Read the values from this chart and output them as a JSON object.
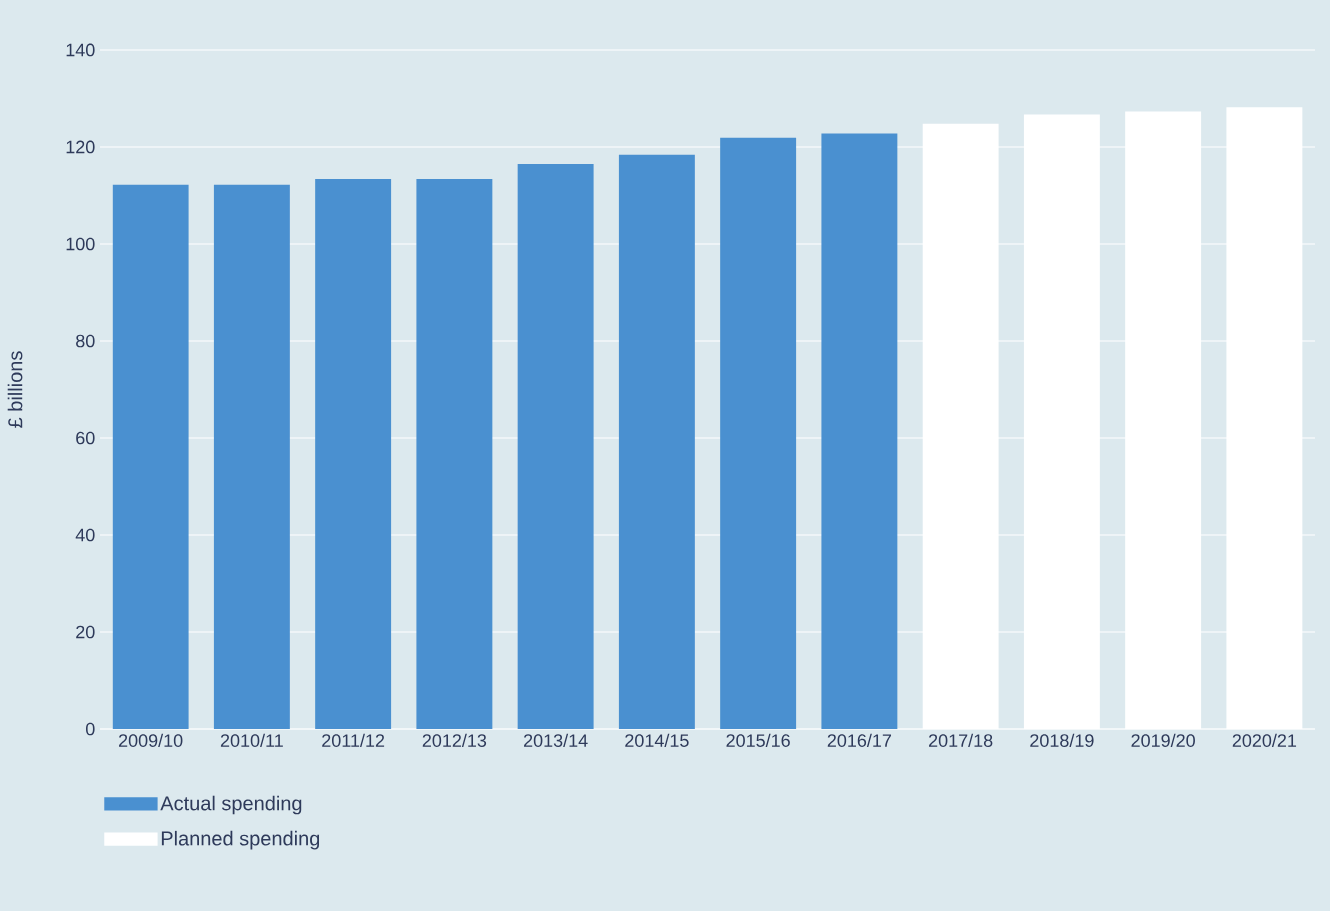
{
  "chart_data": {
    "type": "bar",
    "ylabel": "£ billions",
    "categories": [
      "2009/10",
      "2010/11",
      "2011/12",
      "2012/13",
      "2013/14",
      "2014/15",
      "2015/16",
      "2016/17",
      "2017/18",
      "2018/19",
      "2019/20",
      "2020/21"
    ],
    "series": [
      {
        "name": "Actual spending",
        "color": "#4a90d0",
        "values": [
          112.2,
          112.2,
          113.4,
          113.4,
          116.5,
          118.4,
          121.9,
          122.8,
          null,
          null,
          null,
          null
        ]
      },
      {
        "name": "Planned spending",
        "color": "#ffffff",
        "values": [
          null,
          null,
          null,
          null,
          null,
          null,
          null,
          null,
          124.8,
          126.7,
          127.3,
          128.2
        ]
      }
    ],
    "ylim": [
      0,
      140
    ],
    "yticks": [
      0,
      20,
      40,
      60,
      80,
      100,
      120,
      140
    ],
    "grid": "y",
    "legend": "bottom left"
  }
}
